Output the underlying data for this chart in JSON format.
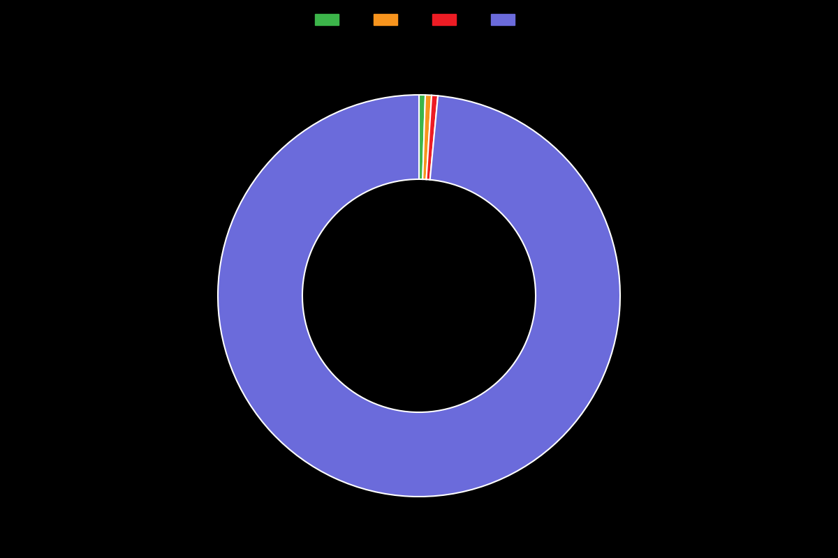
{
  "slices": [
    0.5,
    0.5,
    0.5,
    98.5
  ],
  "colors": [
    "#3cb54a",
    "#f7941d",
    "#ed1c24",
    "#6b6bdb"
  ],
  "legend_labels": [
    "",
    "",
    "",
    ""
  ],
  "background_color": "#000000",
  "wedge_edge_color": "#ffffff",
  "wedge_linewidth": 1.5,
  "donut_width": 0.42,
  "figsize": [
    12.0,
    8.0
  ],
  "dpi": 100
}
